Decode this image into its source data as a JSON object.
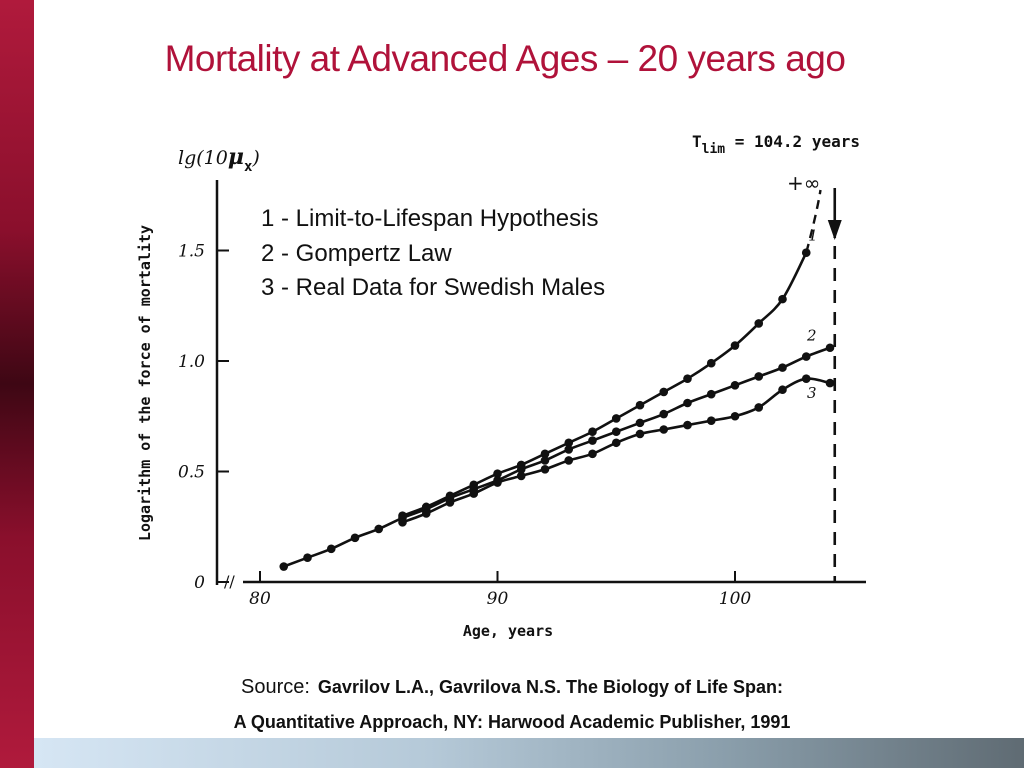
{
  "slide": {
    "title": "Mortality at Advanced Ages – 20 years ago",
    "source_label": "Source:",
    "source_ref_line1": "Gavrilov L.A., Gavrilova N.S. The Biology of Life Span:",
    "source_ref_line2": "A Quantitative Approach, NY: Harwood Academic Publisher, 1991",
    "colors": {
      "title": "#b0123a",
      "left_bar": "#8a0f2c"
    }
  },
  "chart_data": {
    "type": "line",
    "xlabel": "Age, years",
    "ylabel": "Logarithm of the force of mortality",
    "y_axis_symbol": {
      "prefix": "lg",
      "paren_open": "(10",
      "mu": "μ",
      "sub": "x",
      "paren_close": ")"
    },
    "xlim": [
      80,
      105
    ],
    "ylim": [
      0,
      1.85
    ],
    "x_ticks": [
      80,
      90,
      100
    ],
    "x_tick_labels": [
      "80",
      "90",
      "100"
    ],
    "y_ticks": [
      0,
      0.5,
      1.0,
      1.5
    ],
    "y_tick_labels": [
      "0",
      "0.5",
      "1.0",
      "1.5"
    ],
    "axis_break": "//",
    "legend": [
      "1 - Limit-to-Lifespan Hypothesis",
      "2 - Gompertz Law",
      "3 - Real Data for Swedish Males"
    ],
    "annotations": {
      "tlim_base": "T",
      "tlim_sub": "lim",
      "tlim_rest": " = 104.2 years",
      "tlim_value": 104.2,
      "plus_infinity": "+∞"
    },
    "series": [
      {
        "label": "1",
        "x": [
          86,
          87,
          88,
          89,
          90,
          91,
          92,
          93,
          94,
          95,
          96,
          97,
          98,
          99,
          100,
          101,
          102,
          103
        ],
        "y": [
          0.3,
          0.34,
          0.39,
          0.44,
          0.49,
          0.53,
          0.58,
          0.63,
          0.68,
          0.74,
          0.8,
          0.86,
          0.92,
          0.99,
          1.07,
          1.17,
          1.28,
          1.49
        ],
        "dashed_extension_to": 103.6
      },
      {
        "label": "2",
        "x": [
          81,
          82,
          83,
          84,
          85,
          86,
          87,
          88,
          89,
          90,
          91,
          92,
          93,
          94,
          95,
          96,
          97,
          98,
          99,
          100,
          101,
          102,
          103,
          104
        ],
        "y": [
          0.07,
          0.11,
          0.15,
          0.2,
          0.24,
          0.29,
          0.33,
          0.38,
          0.42,
          0.46,
          0.51,
          0.55,
          0.6,
          0.64,
          0.68,
          0.72,
          0.76,
          0.81,
          0.85,
          0.89,
          0.93,
          0.97,
          1.02,
          1.06
        ]
      },
      {
        "label": "3",
        "x": [
          86,
          87,
          88,
          89,
          90,
          91,
          92,
          93,
          94,
          95,
          96,
          97,
          98,
          99,
          100,
          101,
          102,
          103,
          104
        ],
        "y": [
          0.27,
          0.31,
          0.36,
          0.4,
          0.45,
          0.48,
          0.51,
          0.55,
          0.58,
          0.63,
          0.67,
          0.69,
          0.71,
          0.73,
          0.75,
          0.79,
          0.87,
          0.92,
          0.9
        ]
      }
    ]
  }
}
